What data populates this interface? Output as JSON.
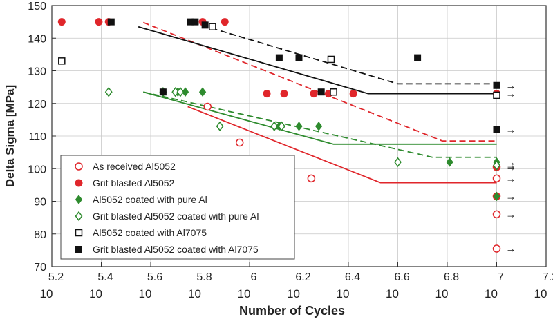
{
  "chart_data": {
    "type": "scatter",
    "xlabel": "Number of Cycles",
    "ylabel": "Delta Sigma  [MPa]",
    "xscale": "log10",
    "xlim": [
      5.2,
      7.2
    ],
    "ylim": [
      70,
      150
    ],
    "xticks": [
      5.2,
      5.4,
      5.6,
      5.8,
      6,
      6.2,
      6.4,
      6.6,
      6.8,
      7,
      7.2
    ],
    "xtick_base": "10",
    "yticks": [
      70,
      80,
      90,
      100,
      110,
      120,
      130,
      140,
      150
    ],
    "legend_position": "bottom-left",
    "runout_arrow": "→",
    "series": [
      {
        "name": "As received Al5052",
        "marker": "open-circle",
        "color": "#e0262b",
        "points": [
          [
            5.83,
            119
          ],
          [
            5.96,
            108
          ],
          [
            6.25,
            97
          ],
          [
            7.0,
            100.5
          ],
          [
            7.0,
            97
          ],
          [
            7.0,
            91.5
          ],
          [
            7.0,
            86
          ],
          [
            7.0,
            75.5
          ]
        ],
        "runout_y": [
          97,
          86,
          75.5
        ],
        "fit_line": {
          "dash": "solid",
          "points": [
            [
              5.75,
              119
            ],
            [
              6.53,
              95.7
            ],
            [
              7.0,
              95.7
            ]
          ]
        }
      },
      {
        "name": "Grit blasted Al5052",
        "marker": "filled-circle",
        "color": "#e0262b",
        "points": [
          [
            5.24,
            145
          ],
          [
            5.39,
            145
          ],
          [
            5.43,
            145
          ],
          [
            5.81,
            145
          ],
          [
            5.9,
            145
          ],
          [
            6.07,
            123
          ],
          [
            6.14,
            123
          ],
          [
            6.26,
            123
          ],
          [
            6.32,
            123
          ],
          [
            6.42,
            123
          ],
          [
            7.0,
            123
          ],
          [
            7.0,
            100.5
          ],
          [
            7.0,
            91.5
          ]
        ],
        "runout_y": [
          123,
          100.5,
          91.5
        ],
        "fit_line": {
          "dash": "dashed",
          "points": [
            [
              5.57,
              144.8
            ],
            [
              6.78,
              108.5
            ],
            [
              7.0,
              108.5
            ]
          ]
        }
      },
      {
        "name": "Al5052 coated with pure Al",
        "marker": "filled-diamond",
        "color": "#2e8b2e",
        "points": [
          [
            5.71,
            123.5
          ],
          [
            5.74,
            123.5
          ],
          [
            5.81,
            123.5
          ],
          [
            6.1,
            113
          ],
          [
            6.12,
            113
          ],
          [
            6.2,
            113
          ],
          [
            6.28,
            113
          ],
          [
            6.81,
            102
          ],
          [
            7.0,
            102
          ],
          [
            7.0,
            91.5
          ]
        ],
        "runout_y": [
          102,
          91.5
        ],
        "fit_line": {
          "dash": "solid",
          "points": [
            [
              5.57,
              123.5
            ],
            [
              6.34,
              107.5
            ],
            [
              7.0,
              107.5
            ]
          ]
        }
      },
      {
        "name": "Grit blasted Al5052 coated with pure Al",
        "marker": "open-diamond",
        "color": "#2e8b2e",
        "points": [
          [
            5.43,
            123.5
          ],
          [
            5.65,
            123.5
          ],
          [
            5.7,
            123.5
          ],
          [
            5.72,
            123.5
          ],
          [
            5.88,
            113
          ],
          [
            6.1,
            113
          ],
          [
            6.13,
            113
          ],
          [
            6.6,
            102
          ],
          [
            7.0,
            101
          ]
        ],
        "runout_y": [
          101
        ],
        "fit_line": {
          "dash": "dashed",
          "points": [
            [
              5.57,
              123.5
            ],
            [
              6.74,
              103.5
            ],
            [
              7.0,
              103.5
            ]
          ]
        }
      },
      {
        "name": "Al5052 coated with Al7075",
        "marker": "open-square",
        "color": "#111111",
        "points": [
          [
            5.24,
            133
          ],
          [
            5.85,
            143.5
          ],
          [
            6.33,
            133.5
          ],
          [
            6.34,
            123.5
          ],
          [
            7.0,
            122.5
          ]
        ],
        "runout_y": [],
        "fit_line": {
          "dash": "dashed",
          "points": [
            [
              5.77,
              144.8
            ],
            [
              6.6,
              126
            ],
            [
              7.0,
              126
            ]
          ]
        }
      },
      {
        "name": "Grit blasted Al5052 coated with Al7075",
        "marker": "filled-square",
        "color": "#111111",
        "points": [
          [
            5.44,
            145
          ],
          [
            5.65,
            123.5
          ],
          [
            5.76,
            145
          ],
          [
            5.78,
            145
          ],
          [
            5.82,
            144
          ],
          [
            6.12,
            134
          ],
          [
            6.2,
            134
          ],
          [
            6.29,
            123.5
          ],
          [
            6.68,
            134
          ],
          [
            7.0,
            125.5
          ],
          [
            7.0,
            112
          ]
        ],
        "runout_y": [
          125.5,
          112
        ],
        "fit_line": {
          "dash": "solid",
          "points": [
            [
              5.55,
              143.5
            ],
            [
              6.48,
              123
            ],
            [
              7.0,
              123
            ]
          ]
        }
      }
    ]
  }
}
